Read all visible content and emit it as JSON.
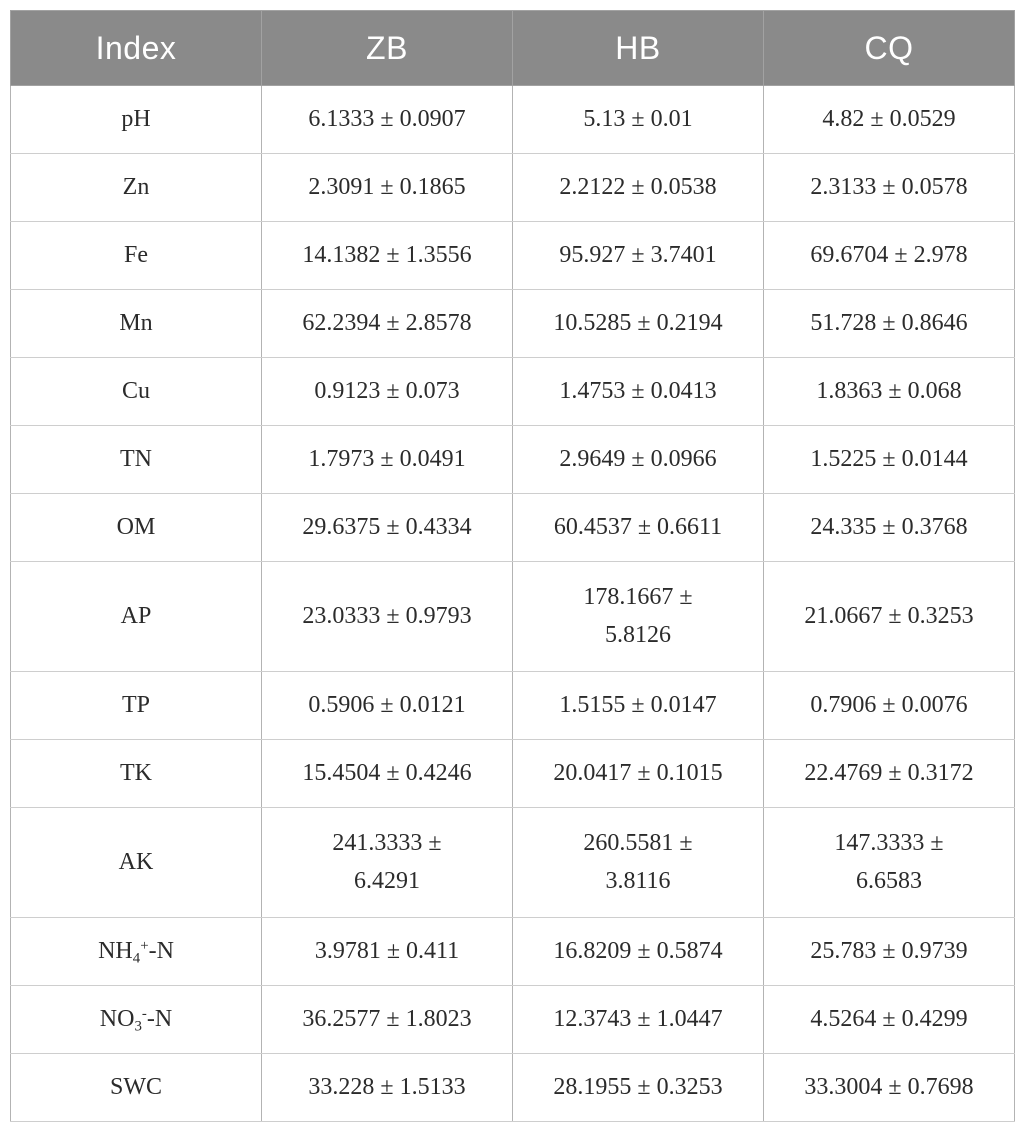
{
  "colors": {
    "header_background": "#8a8a8a",
    "header_text": "#ffffff",
    "body_text": "#2b2b2b",
    "grid_line_vertical": "#b3b3b3",
    "grid_line_horizontal": "#cecece"
  },
  "table": {
    "columns": [
      "Index",
      "ZB",
      "HB",
      "CQ"
    ],
    "rows": [
      {
        "label": "pH",
        "values": [
          "6.1333 ± 0.0907",
          "5.13 ± 0.01",
          "4.82 ± 0.0529"
        ]
      },
      {
        "label": "Zn",
        "values": [
          "2.3091 ± 0.1865",
          "2.2122 ± 0.0538",
          "2.3133 ± 0.0578"
        ]
      },
      {
        "label": "Fe",
        "values": [
          "14.1382 ± 1.3556",
          "95.927 ± 3.7401",
          "69.6704 ± 2.978"
        ]
      },
      {
        "label": "Mn",
        "values": [
          "62.2394 ± 2.8578",
          "10.5285 ± 0.2194",
          "51.728 ± 0.8646"
        ]
      },
      {
        "label": "Cu",
        "values": [
          "0.9123 ± 0.073",
          "1.4753 ± 0.0413",
          "1.8363 ± 0.068"
        ]
      },
      {
        "label": "TN",
        "values": [
          "1.7973 ± 0.0491",
          "2.9649 ± 0.0966",
          "1.5225 ± 0.0144"
        ]
      },
      {
        "label": "OM",
        "values": [
          "29.6375 ± 0.4334",
          "60.4537 ± 0.6611",
          "24.335 ± 0.3768"
        ]
      },
      {
        "label": "AP",
        "tall": true,
        "values": [
          "23.0333 ± 0.9793",
          "178.1667 ±\n5.8126",
          "21.0667 ± 0.3253"
        ]
      },
      {
        "label": "TP",
        "values": [
          "0.5906 ± 0.0121",
          "1.5155 ± 0.0147",
          "0.7906 ± 0.0076"
        ]
      },
      {
        "label": "TK",
        "values": [
          "15.4504 ± 0.4246",
          "20.0417 ± 0.1015",
          "22.4769 ± 0.3172"
        ]
      },
      {
        "label": "AK",
        "tall": true,
        "values": [
          "241.3333 ±\n6.4291",
          "260.5581 ±\n3.8116",
          "147.3333 ±\n6.6583"
        ]
      },
      {
        "label": {
          "parts": [
            {
              "text": "NH"
            },
            {
              "sub": "4"
            },
            {
              "sup": "+"
            },
            {
              "text": "-N"
            }
          ]
        },
        "values": [
          "3.9781 ± 0.411",
          "16.8209 ± 0.5874",
          "25.783 ± 0.9739"
        ]
      },
      {
        "label": {
          "parts": [
            {
              "text": "NO"
            },
            {
              "sub": "3"
            },
            {
              "sup": "-"
            },
            {
              "text": "-N"
            }
          ]
        },
        "values": [
          "36.2577 ± 1.8023",
          "12.3743 ± 1.0447",
          "4.5264 ± 0.4299"
        ]
      },
      {
        "label": "SWC",
        "values": [
          "33.228 ± 1.5133",
          "28.1955 ± 0.3253",
          "33.3004 ± 0.7698"
        ]
      }
    ]
  }
}
